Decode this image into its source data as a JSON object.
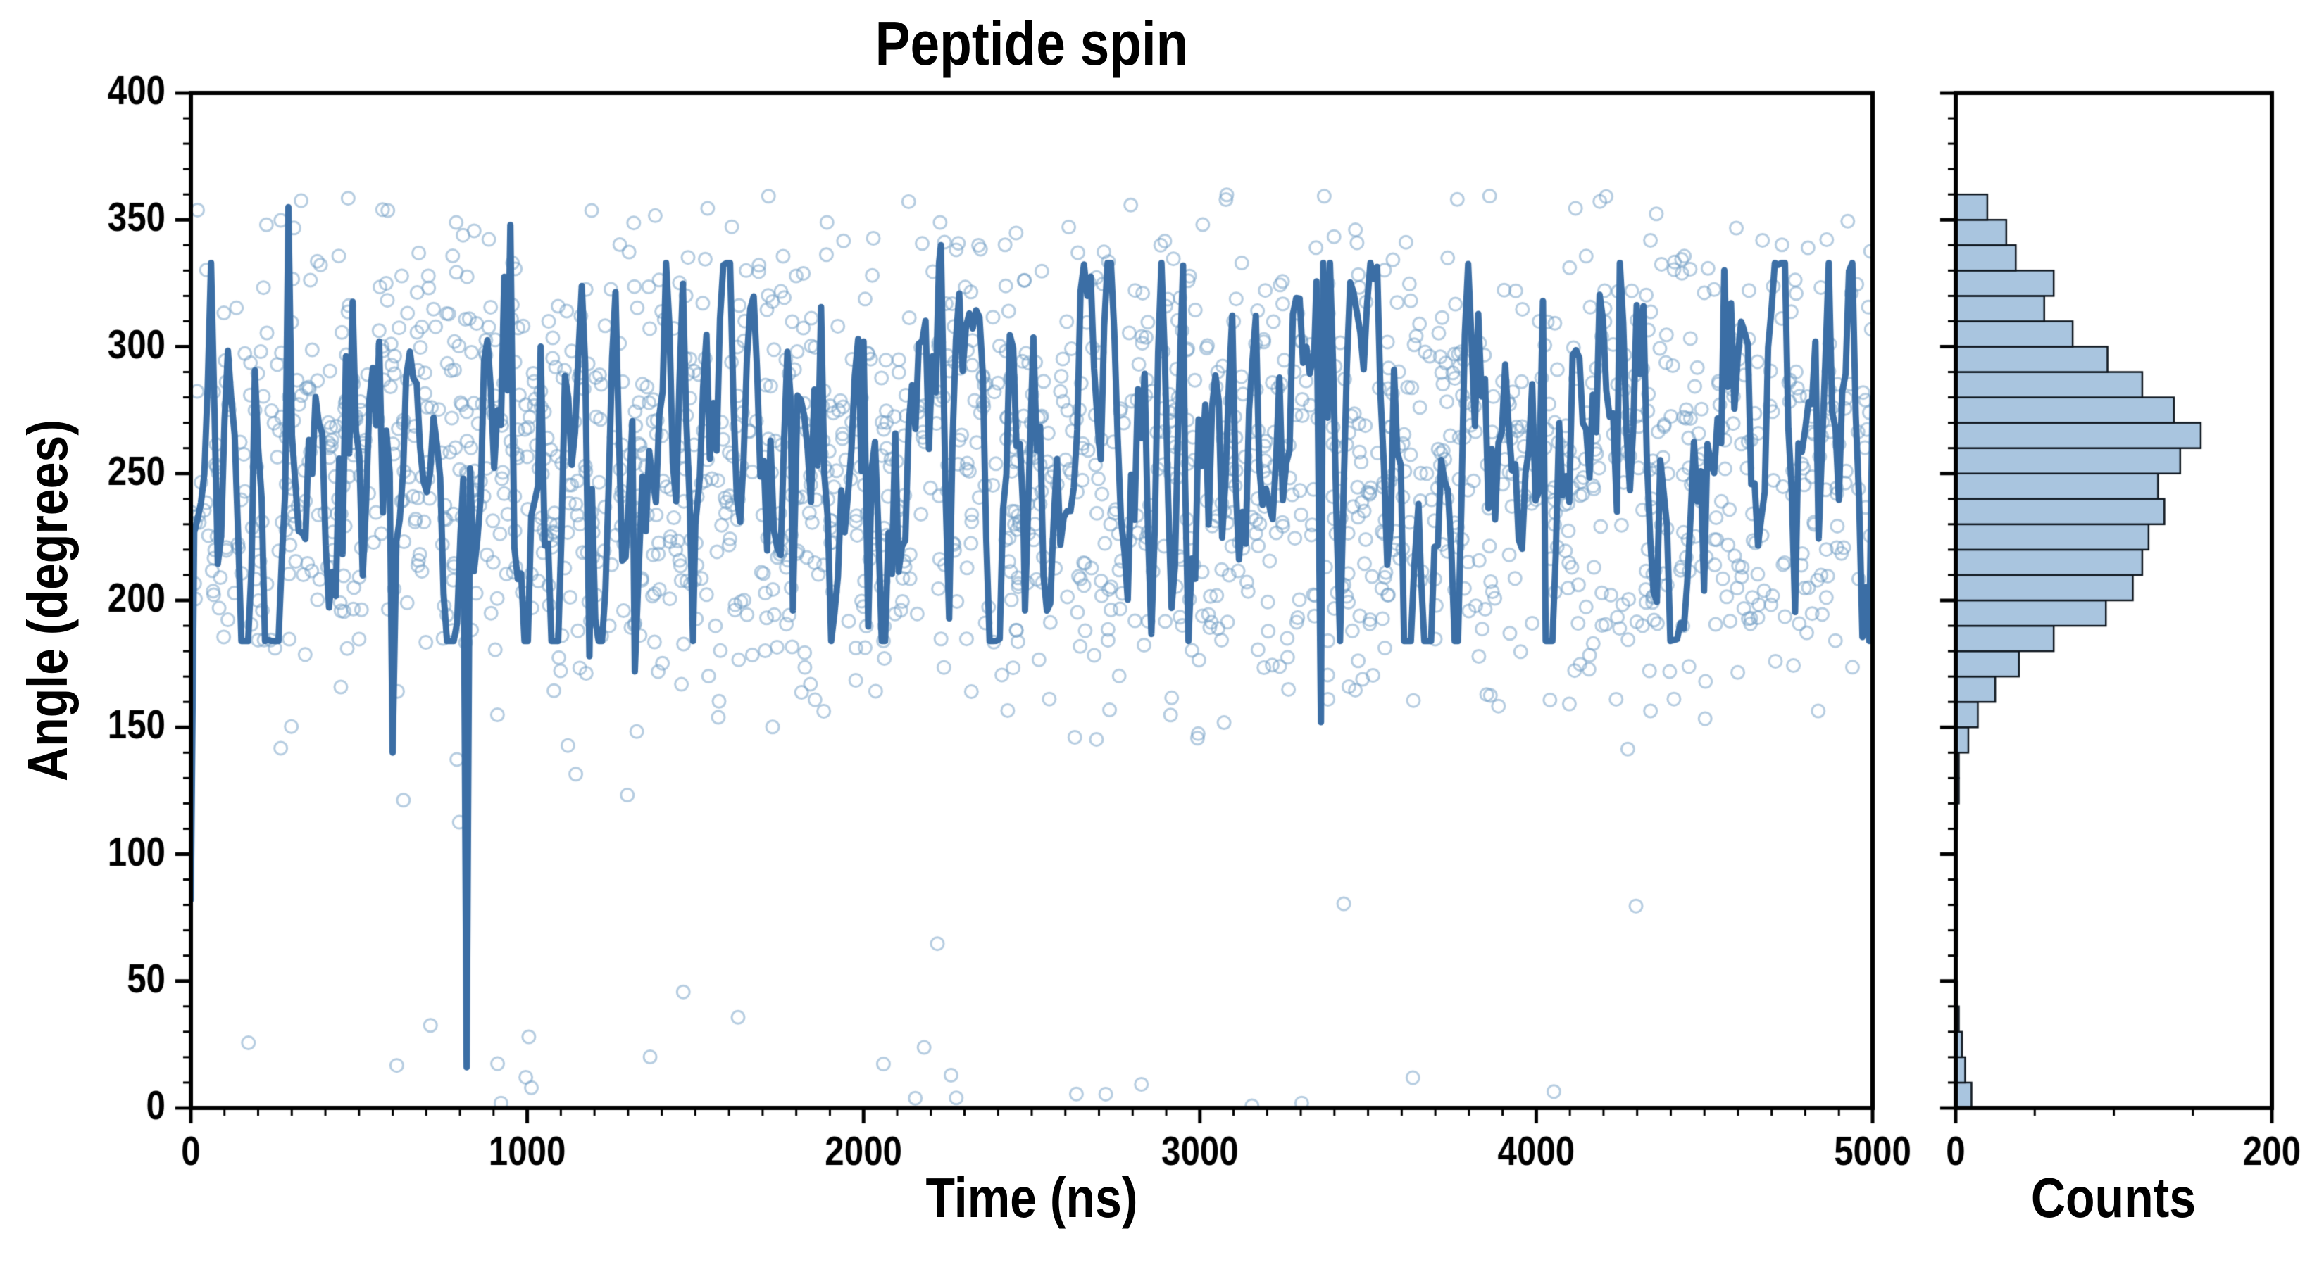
{
  "chart_data": [
    {
      "id": "main-panel",
      "type": "scatter",
      "title": "Peptide spin",
      "xlabel": "Time (ns)",
      "ylabel": "Angle (degrees)",
      "xlim": [
        0,
        5000
      ],
      "ylim": [
        0,
        400
      ],
      "xticks": [
        0,
        1000,
        2000,
        3000,
        4000,
        5000
      ],
      "yticks": [
        0,
        50,
        100,
        150,
        200,
        250,
        300,
        350,
        400
      ],
      "x_minor_step": 100,
      "y_minor_step": 10,
      "grid": false,
      "scatter": {
        "name": "instantaneous-angle-samples",
        "marker": "open-circle",
        "color": "#6d9cc4",
        "alpha": 0.5,
        "marker_radius": 9,
        "n_points": 1818,
        "x_range": [
          0,
          5000
        ],
        "y_distribution": "sampled-from-histogram-counts",
        "seed": 1337
      },
      "line": {
        "name": "running-average-angle",
        "color": "#3b6ea5",
        "width": 9,
        "mean": 256,
        "noise_amplitude": 130,
        "clamp": [
          -72,
          77
        ],
        "n_points": 500,
        "seed": 77,
        "anchors": [
          [
            0,
            82
          ],
          [
            290,
            355
          ],
          [
            560,
            302
          ],
          [
            600,
            140
          ],
          [
            640,
            288
          ],
          [
            810,
            248
          ],
          [
            820,
            16
          ],
          [
            830,
            252
          ],
          [
            950,
            348
          ],
          [
            1040,
            300
          ],
          [
            1185,
            178
          ],
          [
            1320,
            172
          ],
          [
            1500,
            230
          ],
          [
            1790,
            196
          ],
          [
            2000,
            302
          ],
          [
            2230,
            340
          ],
          [
            2480,
            196
          ],
          [
            2700,
            262
          ],
          [
            2950,
            332
          ],
          [
            3210,
            235
          ],
          [
            3340,
            298
          ],
          [
            3360,
            152
          ],
          [
            3380,
            272
          ],
          [
            3650,
            238
          ],
          [
            4020,
            318
          ],
          [
            4240,
            235
          ],
          [
            4550,
            262
          ],
          [
            4830,
            302
          ],
          [
            5000,
            280
          ]
        ]
      }
    },
    {
      "id": "histogram-panel",
      "type": "bar",
      "orientation": "horizontal",
      "xlabel": "Counts",
      "ylabel": "",
      "xlim": [
        0,
        200
      ],
      "ylim": [
        0,
        400
      ],
      "xticks": [
        0,
        200
      ],
      "x_minor_step": 50,
      "y_minor_step": 10,
      "bin_width": 10,
      "bin_start": 0,
      "bar_fill": "#a9c5df",
      "bar_edge": "#101820",
      "counts": [
        10,
        6,
        4,
        2,
        1,
        0,
        1,
        1,
        1,
        0,
        0,
        1,
        2,
        2,
        8,
        14,
        25,
        40,
        62,
        95,
        112,
        118,
        122,
        132,
        128,
        142,
        155,
        138,
        118,
        96,
        74,
        56,
        62,
        38,
        32,
        20,
        0,
        0,
        0,
        0
      ]
    }
  ],
  "colors": {
    "scatter": "#6d9cc4",
    "line": "#3b6ea5",
    "bar_fill": "#a9c5df",
    "bar_edge": "#101820",
    "axes": "#000000",
    "background": "#ffffff"
  }
}
